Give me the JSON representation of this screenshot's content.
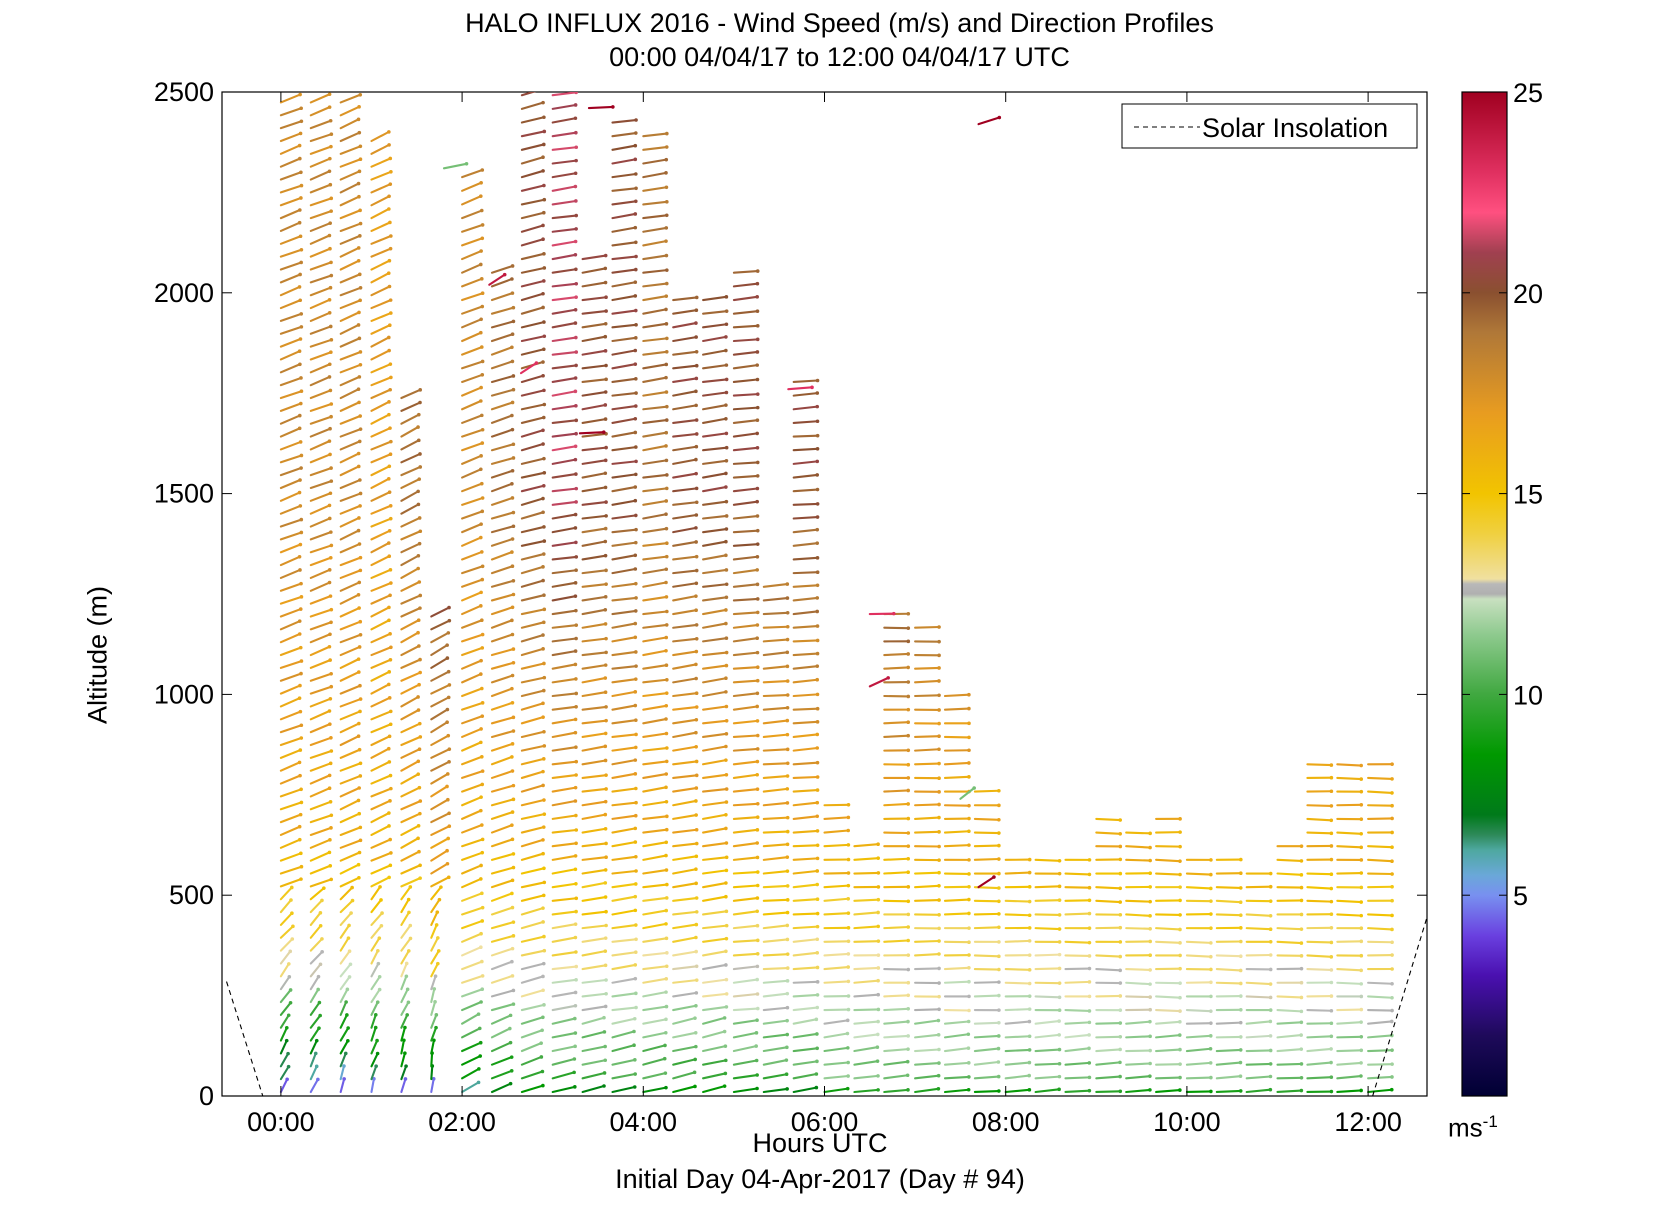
{
  "chart_data": {
    "type": "wind-barb-profile",
    "title": "HALO INFLUX 2016 - Wind Speed (m/s) and Direction Profiles",
    "subtitle": "00:00 04/04/17 to 12:00 04/04/17  UTC",
    "xlabel": "Hours UTC",
    "footnote": "Initial Day 04-Apr-2017 (Day # 94)",
    "ylabel": "Altitude (m)",
    "xlim": [
      -0.65,
      12.65
    ],
    "ylim": [
      0,
      2500
    ],
    "x_ticks": [
      {
        "v": 0,
        "label": "00:00"
      },
      {
        "v": 2,
        "label": "02:00"
      },
      {
        "v": 4,
        "label": "04:00"
      },
      {
        "v": 6,
        "label": "06:00"
      },
      {
        "v": 8,
        "label": "08:00"
      },
      {
        "v": 10,
        "label": "10:00"
      },
      {
        "v": 12,
        "label": "12:00"
      }
    ],
    "y_ticks": [
      0,
      500,
      1000,
      1500,
      2000,
      2500
    ],
    "legend": {
      "entries": [
        "Solar Insolation"
      ],
      "placement": "top-right",
      "line_style": "dashed"
    },
    "colorbar": {
      "min": 0,
      "max": 25,
      "ticks": [
        5,
        10,
        15,
        20,
        25
      ],
      "unit": "ms",
      "unit_exp": "-1"
    },
    "solar_insolation": [
      {
        "x": -0.6,
        "y": 285
      },
      {
        "x": -0.2,
        "y": 0
      },
      {
        "x": 12.05,
        "y": 0
      },
      {
        "x": 12.65,
        "y": 445
      }
    ],
    "profiles": [
      {
        "t": 0.0,
        "top": 2500,
        "dir": 235,
        "speed_low": 4,
        "speed_mid": 15,
        "speed_high": 18
      },
      {
        "t": 0.33,
        "top": 2500,
        "dir": 235,
        "speed_low": 4,
        "speed_mid": 15,
        "speed_high": 18
      },
      {
        "t": 0.66,
        "top": 2500,
        "dir": 232,
        "speed_low": 4,
        "speed_mid": 15,
        "speed_high": 18
      },
      {
        "t": 1.0,
        "top": 2400,
        "dir": 230,
        "speed_low": 5,
        "speed_mid": 15,
        "speed_high": 17
      },
      {
        "t": 1.33,
        "top": 1750,
        "dir": 228,
        "speed_low": 5,
        "speed_mid": 15,
        "speed_high": 19
      },
      {
        "t": 1.66,
        "top": 1200,
        "dir": 225,
        "speed_low": 5,
        "speed_mid": 16,
        "speed_high": 21
      },
      {
        "t": 2.0,
        "top": 2300,
        "dir": 235,
        "speed_low": 6,
        "speed_mid": 15,
        "speed_high": 18
      },
      {
        "t": 2.33,
        "top": 2050,
        "dir": 240,
        "speed_low": 7,
        "speed_mid": 15,
        "speed_high": 19
      },
      {
        "t": 2.66,
        "top": 2500,
        "dir": 245,
        "speed_low": 8,
        "speed_mid": 15,
        "speed_high": 20
      },
      {
        "t": 3.0,
        "top": 2500,
        "dir": 255,
        "speed_low": 8,
        "speed_mid": 15,
        "speed_high": 21
      },
      {
        "t": 3.33,
        "top": 2100,
        "dir": 255,
        "speed_low": 8,
        "speed_mid": 15,
        "speed_high": 20
      },
      {
        "t": 3.66,
        "top": 2450,
        "dir": 255,
        "speed_low": 8,
        "speed_mid": 15,
        "speed_high": 20
      },
      {
        "t": 4.0,
        "top": 2400,
        "dir": 255,
        "speed_low": 8,
        "speed_mid": 15,
        "speed_high": 19
      },
      {
        "t": 4.33,
        "top": 2000,
        "dir": 255,
        "speed_low": 8,
        "speed_mid": 15,
        "speed_high": 20
      },
      {
        "t": 4.66,
        "top": 2000,
        "dir": 255,
        "speed_low": 8,
        "speed_mid": 15,
        "speed_high": 20
      },
      {
        "t": 5.0,
        "top": 2050,
        "dir": 260,
        "speed_low": 8,
        "speed_mid": 15,
        "speed_high": 20
      },
      {
        "t": 5.33,
        "top": 1300,
        "dir": 262,
        "speed_low": 8,
        "speed_mid": 15,
        "speed_high": 20
      },
      {
        "t": 5.66,
        "top": 1780,
        "dir": 262,
        "speed_low": 8,
        "speed_mid": 15,
        "speed_high": 20
      },
      {
        "t": 6.0,
        "top": 750,
        "dir": 265,
        "speed_low": 9,
        "speed_mid": 15,
        "speed_high": 20
      },
      {
        "t": 6.33,
        "top": 650,
        "dir": 265,
        "speed_low": 9,
        "speed_mid": 15,
        "speed_high": 20
      },
      {
        "t": 6.66,
        "top": 1200,
        "dir": 268,
        "speed_low": 9,
        "speed_mid": 15,
        "speed_high": 21
      },
      {
        "t": 7.0,
        "top": 1170,
        "dir": 268,
        "speed_low": 9,
        "speed_mid": 15,
        "speed_high": 20
      },
      {
        "t": 7.33,
        "top": 1000,
        "dir": 268,
        "speed_low": 9,
        "speed_mid": 15,
        "speed_high": 19
      },
      {
        "t": 7.66,
        "top": 780,
        "dir": 270,
        "speed_low": 9,
        "speed_mid": 15,
        "speed_high": 18
      },
      {
        "t": 8.0,
        "top": 620,
        "dir": 270,
        "speed_low": 9,
        "speed_mid": 15,
        "speed_high": 18
      },
      {
        "t": 8.33,
        "top": 620,
        "dir": 270,
        "speed_low": 9,
        "speed_mid": 15,
        "speed_high": 18
      },
      {
        "t": 8.66,
        "top": 620,
        "dir": 270,
        "speed_low": 9,
        "speed_mid": 15,
        "speed_high": 18
      },
      {
        "t": 9.0,
        "top": 720,
        "dir": 272,
        "speed_low": 9,
        "speed_mid": 15,
        "speed_high": 18
      },
      {
        "t": 9.33,
        "top": 680,
        "dir": 272,
        "speed_low": 9,
        "speed_mid": 15,
        "speed_high": 18
      },
      {
        "t": 9.66,
        "top": 710,
        "dir": 272,
        "speed_low": 9,
        "speed_mid": 15,
        "speed_high": 18
      },
      {
        "t": 10.0,
        "top": 590,
        "dir": 272,
        "speed_low": 9,
        "speed_mid": 15,
        "speed_high": 17
      },
      {
        "t": 10.33,
        "top": 590,
        "dir": 272,
        "speed_low": 9,
        "speed_mid": 15,
        "speed_high": 17
      },
      {
        "t": 10.66,
        "top": 560,
        "dir": 272,
        "speed_low": 9,
        "speed_mid": 15,
        "speed_high": 17
      },
      {
        "t": 11.0,
        "top": 630,
        "dir": 272,
        "speed_low": 9,
        "speed_mid": 15,
        "speed_high": 17
      },
      {
        "t": 11.33,
        "top": 850,
        "dir": 272,
        "speed_low": 9,
        "speed_mid": 15,
        "speed_high": 18
      },
      {
        "t": 11.66,
        "top": 850,
        "dir": 272,
        "speed_low": 9,
        "speed_mid": 15,
        "speed_high": 18
      },
      {
        "t": 12.0,
        "top": 840,
        "dir": 272,
        "speed_low": 9,
        "speed_mid": 15,
        "speed_high": 18
      }
    ],
    "isolated_barbs": [
      {
        "t": 7.7,
        "alt": 2420,
        "dir": 240,
        "speed": 25
      },
      {
        "t": 2.3,
        "alt": 2020,
        "dir": 220,
        "speed": 24
      },
      {
        "t": 2.65,
        "alt": 1800,
        "dir": 220,
        "speed": 23
      },
      {
        "t": 3.4,
        "alt": 2460,
        "dir": 265,
        "speed": 25
      },
      {
        "t": 3.3,
        "alt": 1650,
        "dir": 265,
        "speed": 25
      },
      {
        "t": 7.7,
        "alt": 520,
        "dir": 220,
        "speed": 25
      },
      {
        "t": 6.5,
        "alt": 1020,
        "dir": 230,
        "speed": 24
      },
      {
        "t": 5.6,
        "alt": 1760,
        "dir": 262,
        "speed": 23
      },
      {
        "t": 6.5,
        "alt": 1200,
        "dir": 268,
        "speed": 23
      },
      {
        "t": 7.5,
        "alt": 740,
        "dir": 215,
        "speed": 11
      },
      {
        "t": 1.8,
        "alt": 2310,
        "dir": 250,
        "speed": 11
      }
    ]
  }
}
